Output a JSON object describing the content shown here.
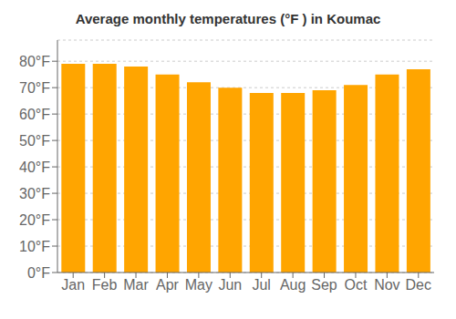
{
  "chart_data": {
    "type": "bar",
    "title": "Average monthly temperatures (°F ) in Koumac",
    "categories": [
      "Jan",
      "Feb",
      "Mar",
      "Apr",
      "May",
      "Jun",
      "Jul",
      "Aug",
      "Sep",
      "Oct",
      "Nov",
      "Dec"
    ],
    "values": [
      79,
      79,
      78,
      75,
      72,
      70,
      68,
      68,
      69,
      71,
      75,
      77
    ],
    "color": "#FFA500",
    "ylim": [
      0,
      88
    ],
    "yticks": [
      {
        "value": 0,
        "label": "0°F"
      },
      {
        "value": 10,
        "label": "10°F"
      },
      {
        "value": 20,
        "label": "20°F"
      },
      {
        "value": 30,
        "label": "30°F"
      },
      {
        "value": 40,
        "label": "40°F"
      },
      {
        "value": 50,
        "label": "50°F"
      },
      {
        "value": 60,
        "label": "60°F"
      },
      {
        "value": 70,
        "label": "70°F"
      },
      {
        "value": 80,
        "label": "80°F"
      }
    ],
    "grid": true
  }
}
